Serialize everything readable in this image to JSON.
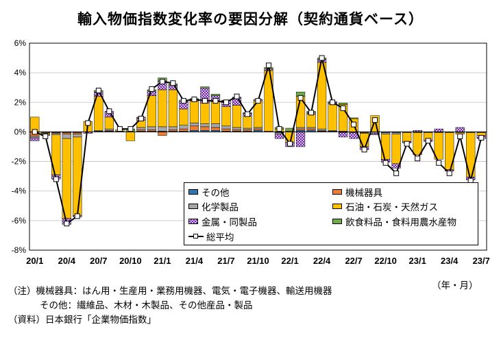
{
  "chart_data": {
    "type": "bar",
    "stacked": true,
    "title": "輸入物価指数変化率の要因分解（契約通貨ベース）",
    "unit_label": "（年・月）",
    "ylim": [
      -8,
      6
    ],
    "ytick_values": [
      6,
      4,
      2,
      0,
      -2,
      -4,
      -6,
      -8
    ],
    "ytick_labels": [
      "6%",
      "4%",
      "2%",
      "0%",
      "-2%",
      "-4%",
      "-6%",
      "-8%"
    ],
    "grid": "horizontal",
    "legend_position": "lower-right inside",
    "categories": [
      "20/1",
      "20/2",
      "20/3",
      "20/4",
      "20/5",
      "20/6",
      "20/7",
      "20/8",
      "20/9",
      "20/10",
      "20/11",
      "20/12",
      "21/1",
      "21/2",
      "21/3",
      "21/4",
      "21/5",
      "21/6",
      "21/7",
      "21/8",
      "21/9",
      "21/10",
      "21/11",
      "21/12",
      "22/1",
      "22/2",
      "22/3",
      "22/4",
      "22/5",
      "22/6",
      "22/7",
      "22/8",
      "22/9",
      "22/10",
      "22/11",
      "22/12",
      "23/1",
      "23/2",
      "23/3",
      "23/4",
      "23/5",
      "23/6",
      "23/7"
    ],
    "xtick_labels": [
      "20/1",
      "20/4",
      "20/7",
      "20/10",
      "21/1",
      "21/4",
      "21/7",
      "21/10",
      "22/1",
      "22/4",
      "22/7",
      "22/10",
      "23/1",
      "23/4",
      "23/7"
    ],
    "xtick_every": 3,
    "series": [
      {
        "name": "その他",
        "color": "#2e75b6",
        "pattern": "solid",
        "values": [
          0,
          0,
          -0.05,
          -0.05,
          -0.05,
          0,
          0.05,
          0.05,
          0,
          0,
          0.05,
          0.05,
          0.05,
          0.05,
          0.05,
          0.1,
          0.1,
          0.1,
          0.05,
          0.05,
          0.05,
          0.1,
          0,
          -0.05,
          0,
          0.1,
          0.1,
          0.05,
          0.05,
          0.05,
          0,
          0,
          0,
          -0.05,
          -0.05,
          0,
          0,
          0,
          0,
          0,
          0,
          0,
          0
        ]
      },
      {
        "name": "機械器具",
        "color": "#ed7d31",
        "pattern": "solid",
        "values": [
          -0.3,
          -0.05,
          -0.05,
          -0.1,
          -0.1,
          0,
          0,
          0.05,
          0,
          0,
          0.1,
          0.1,
          -0.25,
          0.1,
          0.15,
          0.3,
          0.25,
          0.2,
          0.15,
          0.1,
          0.1,
          0.1,
          0.05,
          0,
          0.05,
          0.1,
          0.1,
          0.05,
          0,
          0,
          0,
          -0.05,
          0,
          0,
          0,
          0,
          0,
          0,
          0,
          0,
          0,
          0,
          0
        ]
      },
      {
        "name": "化学製品",
        "color": "#a6a6a6",
        "pattern": "solid",
        "values": [
          -0.1,
          -0.05,
          -0.1,
          -0.3,
          -0.2,
          0,
          0.05,
          0.1,
          0.05,
          0,
          0.15,
          0.2,
          0.3,
          0.2,
          0.25,
          0.2,
          0.2,
          0.25,
          0.2,
          0.15,
          0.1,
          0.1,
          0,
          -0.1,
          0,
          0.1,
          0.1,
          0.1,
          0.05,
          -0.05,
          -0.05,
          -0.05,
          -0.1,
          -0.1,
          -0.1,
          -0.05,
          -0.05,
          -0.05,
          -0.05,
          -0.05,
          -0.05,
          -0.05,
          -0.05
        ]
      },
      {
        "name": "石油・石炭・天然ガス",
        "color": "#ffc000",
        "pattern": "solid",
        "values": [
          1.0,
          -0.1,
          -2.7,
          -5.4,
          -5.3,
          0.7,
          2.3,
          0.8,
          0.1,
          -0.6,
          0.5,
          2.1,
          2.5,
          2.5,
          1.1,
          1.5,
          1.4,
          1.5,
          1.3,
          1.5,
          0.8,
          1.8,
          4.1,
          0.2,
          -0.7,
          2.1,
          0.9,
          4.5,
          1.8,
          1.8,
          0.9,
          -0.9,
          1.1,
          -1.7,
          -2.0,
          -0.6,
          -1.5,
          -0.5,
          -1.8,
          -2.5,
          -0.1,
          -3.0,
          -0.2
        ]
      },
      {
        "name": "金属・同製品",
        "color": "#7030a0",
        "pattern": "checker",
        "values": [
          -0.2,
          -0.05,
          -0.3,
          -0.4,
          -0.1,
          -0.1,
          0.3,
          0.4,
          0,
          0,
          0.15,
          0.3,
          0.6,
          0.3,
          0.5,
          0.1,
          1.0,
          0.4,
          0.4,
          0.5,
          0.2,
          0.1,
          0.1,
          -0.3,
          -0.3,
          -1.0,
          0.1,
          0.2,
          0.1,
          -0.3,
          -0.4,
          -0.2,
          -0.1,
          -0.2,
          -0.3,
          -0.1,
          0.1,
          -0.1,
          0.2,
          -0.1,
          0.3,
          -0.2,
          -0.2
        ]
      },
      {
        "name": "飲食料品・食料用農水産物",
        "color": "#70ad47",
        "pattern": "solid",
        "values": [
          0,
          0,
          0,
          0,
          0,
          0,
          0.1,
          0,
          0,
          0.2,
          0.05,
          0.1,
          0.2,
          0.1,
          0.1,
          0.05,
          0.1,
          0.1,
          0.05,
          0.05,
          0.05,
          0,
          0.1,
          0.1,
          0.2,
          0.3,
          0.1,
          0.1,
          0.05,
          0.1,
          0.05,
          0,
          0,
          0,
          0,
          0,
          0,
          0,
          0,
          0,
          0,
          0,
          0
        ]
      }
    ],
    "total": {
      "name": "総平均",
      "color": "#000000",
      "values": [
        0.0,
        -0.3,
        -3.2,
        -6.2,
        -5.7,
        0.6,
        2.8,
        1.4,
        0.2,
        0.2,
        0.9,
        2.9,
        3.4,
        3.3,
        2.1,
        2.2,
        2.1,
        2.1,
        2.0,
        2.4,
        1.2,
        2.1,
        4.5,
        0.2,
        -0.8,
        2.3,
        1.3,
        5.0,
        2.0,
        1.6,
        0.5,
        -1.2,
        0.8,
        -2.1,
        -2.8,
        -0.8,
        -1.8,
        -0.6,
        -2.1,
        -2.8,
        -0.3,
        -3.3,
        -0.4
      ]
    }
  },
  "legend": {
    "items": [
      "その他",
      "機械器具",
      "化学製品",
      "石油・石炭・天然ガス",
      "金属・同製品",
      "飲食料品・食料用農水産物",
      "総平均"
    ]
  },
  "notes": {
    "line1": "（注）機械器具：はん用・生産用・業務用機器、電気・電子機器、輸送用機器",
    "line2": "その他：繊維品、木材・木製品、その他産品・製品",
    "line3": "（資料）日本銀行「企業物価指数」"
  }
}
